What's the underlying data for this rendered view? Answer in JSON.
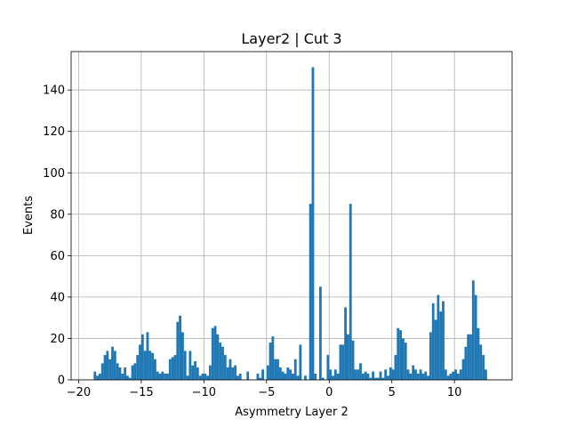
{
  "chart_data": {
    "type": "histogram",
    "title": "Layer2 | Cut 3",
    "x_label": "Asymmetry Layer 2",
    "y_label": "Events",
    "color": "#1f77b4",
    "grid": true,
    "bins": [
      -19,
      -18.8,
      -18.6,
      -18.4,
      -18.2,
      -18,
      -17.8,
      -17.6,
      -17.4,
      -17.2,
      -17,
      -16.8,
      -16.6,
      -16.4,
      -16.2,
      -16,
      -15.8,
      -15.6,
      -15.4,
      -15.2,
      -15,
      -14.8,
      -14.6,
      -14.4,
      -14.2,
      -14,
      -13.8,
      -13.6,
      -13.4,
      -13.2,
      -13,
      -12.8,
      -12.6,
      -12.4,
      -12.2,
      -12,
      -11.8,
      -11.6,
      -11.4,
      -11.2,
      -11,
      -10.8,
      -10.6,
      -10.4,
      -10.2,
      -10,
      -9.8,
      -9.6,
      -9.4,
      -9.2,
      -9,
      -8.8,
      -8.6,
      -8.4,
      -8.2,
      -8,
      -7.8,
      -7.6,
      -7.4,
      -7.2,
      -7,
      -6.8,
      -6.6,
      -6.4,
      -6.2,
      -6,
      -5.8,
      -5.6,
      -5.4,
      -5.2,
      -5,
      -4.8,
      -4.6,
      -4.4,
      -4.2,
      -4,
      -3.8,
      -3.6,
      -3.4,
      -3.2,
      -3,
      -2.8,
      -2.6,
      -2.4,
      -2.2,
      -2,
      -1.8,
      -1.6,
      -1.4,
      -1.2,
      -1,
      -0.8,
      -0.6,
      -0.4,
      -0.2,
      0,
      0.2,
      0.4,
      0.6,
      0.8,
      1,
      1.2,
      1.4,
      1.6,
      1.8,
      2,
      2.2,
      2.4,
      2.6,
      2.8,
      3,
      3.2,
      3.4,
      3.6,
      3.8,
      4,
      4.2,
      4.4,
      4.6,
      4.8,
      5,
      5.2,
      5.4,
      5.6,
      5.8,
      6,
      6.2,
      6.4,
      6.6,
      6.8,
      7,
      7.2,
      7.4,
      7.6,
      7.8,
      8,
      8.2,
      8.4,
      8.6,
      8.8,
      9,
      9.2,
      9.4,
      9.6,
      9.8,
      10,
      10.2,
      10.4,
      10.6,
      10.8,
      11,
      11.2,
      11.4,
      11.6,
      11.8,
      12,
      12.2,
      12.4,
      12.6,
      12.8,
      13
    ],
    "values": [
      0,
      4,
      2,
      3,
      8,
      12,
      14,
      10,
      16,
      14,
      8,
      6,
      3,
      6,
      2,
      1,
      7,
      8,
      12,
      17,
      22,
      14,
      23,
      14,
      13,
      10,
      4,
      3,
      4,
      3,
      3,
      10,
      11,
      12,
      28,
      31,
      23,
      14,
      2,
      14,
      7,
      9,
      6,
      2,
      3,
      3,
      2,
      7,
      25,
      26,
      22,
      18,
      16,
      12,
      6,
      10,
      6,
      7,
      2,
      3,
      0,
      0,
      4,
      0,
      0,
      0,
      3,
      1,
      5,
      0,
      7,
      18,
      21,
      10,
      10,
      6,
      4,
      3,
      6,
      5,
      3,
      10,
      2,
      17,
      0,
      2,
      0,
      85,
      151,
      3,
      0,
      45,
      1,
      0,
      12,
      5,
      2,
      5,
      3,
      17,
      17,
      35,
      22,
      85,
      19,
      5,
      5,
      8,
      3,
      4,
      3,
      1,
      4,
      1,
      1,
      4,
      1,
      5,
      2,
      6,
      5,
      12,
      25,
      24,
      20,
      18,
      5,
      3,
      7,
      5,
      3,
      5,
      3,
      4,
      2,
      23,
      37,
      29,
      41,
      33,
      38,
      5,
      2,
      3,
      4,
      5,
      3,
      5,
      10,
      16,
      22,
      22,
      48,
      41,
      25,
      17,
      12,
      5,
      0,
      0
    ],
    "xlim": [
      -20.6,
      14.6
    ],
    "xticks": [
      {
        "value": -20,
        "label": "−20"
      },
      {
        "value": -15,
        "label": "−15"
      },
      {
        "value": -10,
        "label": "−10"
      },
      {
        "value": -5,
        "label": "−5"
      },
      0,
      5,
      10
    ],
    "ylim": [
      0,
      158.55
    ],
    "yticks": [
      0,
      20,
      40,
      60,
      80,
      100,
      120,
      140
    ]
  }
}
